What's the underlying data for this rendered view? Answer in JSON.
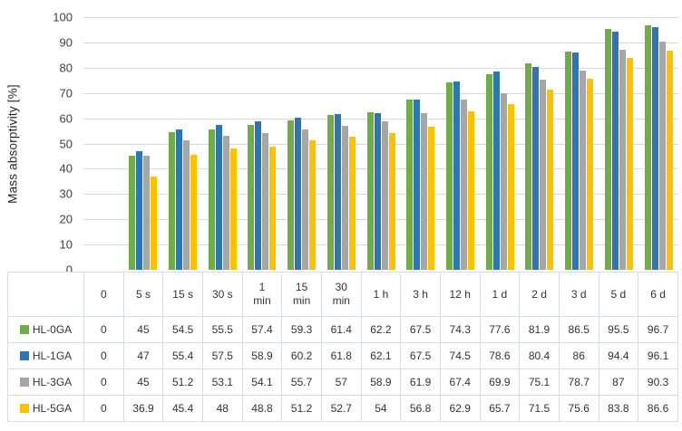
{
  "chart_data": {
    "type": "bar",
    "title": "",
    "xlabel": "",
    "ylabel": "Mass absorptivity [%]",
    "ylim": [
      0,
      100
    ],
    "yticks": [
      0,
      10,
      20,
      30,
      40,
      50,
      60,
      70,
      80,
      90,
      100
    ],
    "grid": true,
    "legend_position": "table-left-column",
    "categories": [
      "0",
      "5 s",
      "15 s",
      "30 s",
      "1 min",
      "15 min",
      "30 min",
      "1 h",
      "3 h",
      "12 h",
      "1 d",
      "2 d",
      "3 d",
      "5 d",
      "6 d"
    ],
    "series": [
      {
        "name": "HL-0GA",
        "color": "#70AD47",
        "values": [
          0,
          45,
          54.5,
          55.5,
          57.4,
          59.3,
          61.4,
          62.2,
          67.5,
          74.3,
          77.6,
          81.9,
          86.5,
          95.5,
          96.7
        ]
      },
      {
        "name": "HL-1GA",
        "color": "#2E75B6",
        "values": [
          0,
          47,
          55.4,
          57.5,
          58.9,
          60.2,
          61.8,
          62.1,
          67.5,
          74.5,
          78.6,
          80.4,
          86,
          94.4,
          96.1
        ]
      },
      {
        "name": "HL-3GA",
        "color": "#A6A6A6",
        "values": [
          0,
          45,
          51.2,
          53.1,
          54.1,
          55.7,
          57,
          58.9,
          61.9,
          67.4,
          69.9,
          75.1,
          78.7,
          87,
          90.3
        ]
      },
      {
        "name": "HL-5GA",
        "color": "#FFC000",
        "values": [
          0,
          36.9,
          45.4,
          48,
          48.8,
          51.2,
          52.7,
          54,
          56.8,
          62.9,
          65.7,
          71.5,
          75.6,
          83.8,
          86.6
        ]
      }
    ]
  },
  "colors": {
    "gridline": "#D9D9D9",
    "table_border": "#D5DDE5",
    "text": "#333333"
  }
}
